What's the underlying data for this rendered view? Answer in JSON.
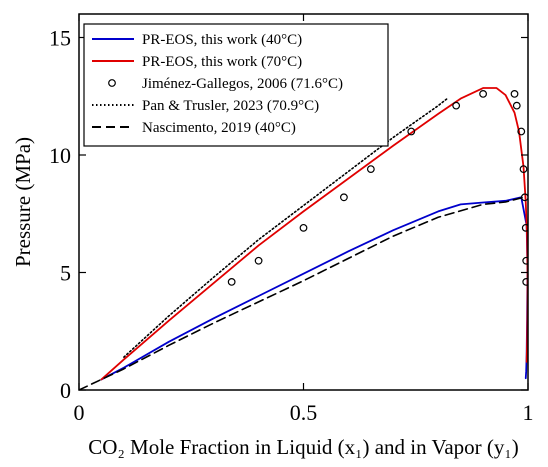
{
  "chart_data": {
    "type": "line",
    "title": "",
    "xlabel": "CO₂ Mole Fraction in Liquid (x₁) and in Vapor (y₁)",
    "ylabel": "Pressure (MPa)",
    "xlim": [
      0,
      1
    ],
    "ylim": [
      0,
      16
    ],
    "xticks": [
      "0",
      "0.5",
      "1"
    ],
    "yticks": [
      "0",
      "5",
      "10",
      "15"
    ],
    "grid": false,
    "legend_position": "top-left",
    "series": [
      {
        "name": "PR-EOS, this work (40°C)",
        "kind": "line",
        "color": "#0000cc",
        "dash": "solid",
        "x": [
          0.05,
          0.1,
          0.2,
          0.3,
          0.4,
          0.5,
          0.6,
          0.7,
          0.8,
          0.85,
          0.9,
          0.95,
          0.985,
          0.997,
          0.999,
          0.998,
          0.997,
          0.996,
          0.995
        ],
        "y": [
          0.45,
          0.95,
          2.05,
          3.05,
          4.0,
          4.95,
          5.9,
          6.8,
          7.6,
          7.9,
          7.98,
          8.05,
          8.2,
          7.0,
          5.0,
          3.0,
          1.5,
          0.8,
          0.5
        ]
      },
      {
        "name": "PR-EOS, this work (70°C)",
        "kind": "line",
        "color": "#e00000",
        "dash": "solid",
        "x": [
          0.05,
          0.1,
          0.2,
          0.3,
          0.4,
          0.5,
          0.6,
          0.7,
          0.8,
          0.85,
          0.9,
          0.93,
          0.95,
          0.97,
          0.98,
          0.99,
          0.995,
          0.998,
          0.999,
          0.999,
          0.998,
          0.997
        ],
        "y": [
          0.45,
          1.3,
          2.95,
          4.55,
          6.15,
          7.6,
          9.0,
          10.4,
          11.75,
          12.4,
          12.85,
          12.85,
          12.55,
          11.8,
          11.0,
          9.5,
          8.0,
          6.5,
          5.0,
          3.5,
          2.0,
          1.2
        ]
      },
      {
        "name": "Jiménez-Gallegos, 2006 (71.6°C)",
        "kind": "scatter",
        "color": "#000000",
        "x": [
          0.34,
          0.4,
          0.5,
          0.59,
          0.65,
          0.74,
          0.84,
          0.9,
          0.97,
          0.975,
          0.985,
          0.99,
          0.993,
          0.995,
          0.996,
          0.996
        ],
        "y": [
          4.6,
          5.5,
          6.9,
          8.2,
          9.4,
          11.0,
          12.1,
          12.6,
          12.6,
          12.1,
          11.0,
          9.4,
          8.2,
          6.9,
          5.5,
          4.6
        ]
      },
      {
        "name": "Pan & Trusler, 2023 (70.9°C)",
        "kind": "line",
        "color": "#000000",
        "dash": "dotted",
        "x": [
          0.1,
          0.2,
          0.3,
          0.4,
          0.5,
          0.6,
          0.7,
          0.8,
          0.82
        ],
        "y": [
          1.4,
          3.15,
          4.8,
          6.4,
          7.85,
          9.3,
          10.75,
          12.1,
          12.4
        ]
      },
      {
        "name": "Nascimento, 2019 (40°C)",
        "kind": "line",
        "color": "#000000",
        "dash": "dashed",
        "x": [
          0.0,
          0.1,
          0.2,
          0.3,
          0.4,
          0.5,
          0.6,
          0.7,
          0.8,
          0.9,
          0.95,
          0.99
        ],
        "y": [
          0.0,
          0.9,
          1.9,
          2.85,
          3.75,
          4.65,
          5.6,
          6.55,
          7.35,
          7.9,
          8.0,
          8.2
        ]
      }
    ]
  }
}
